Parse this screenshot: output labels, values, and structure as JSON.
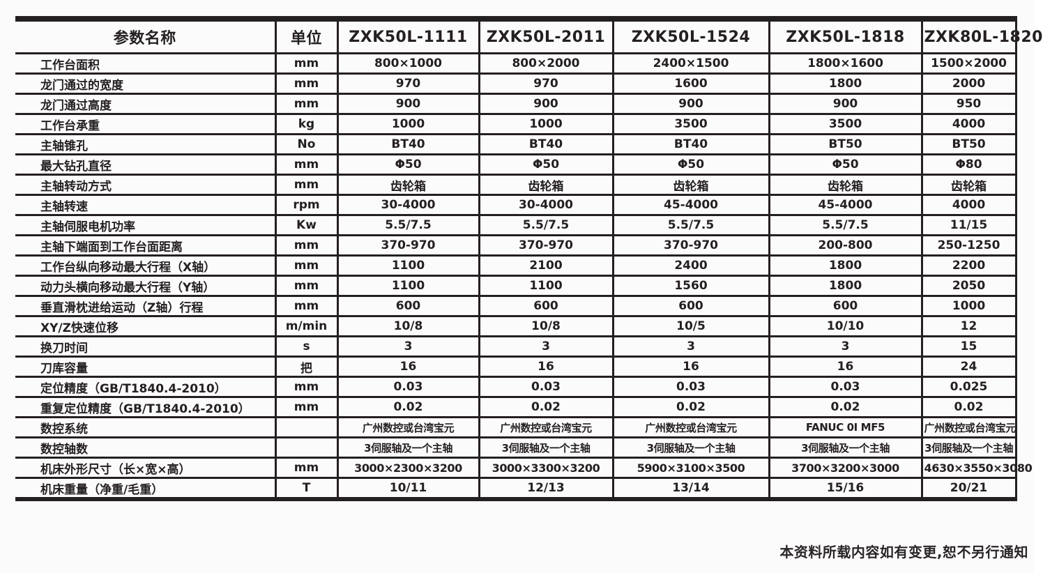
{
  "table": {
    "columns": [
      "参数名称",
      "单位",
      "ZXK50L-1111",
      "ZXK50L-2011",
      "ZXK50L-1524",
      "ZXK50L-1818",
      "ZXK80L-1820"
    ],
    "rows": [
      {
        "name": "工作台面积",
        "unit": "mm",
        "values": [
          "800×1000",
          "800×2000",
          "2400×1500",
          "1800×1600",
          "1500×2000"
        ]
      },
      {
        "name": "龙门通过的宽度",
        "unit": "mm",
        "values": [
          "970",
          "970",
          "1600",
          "1800",
          "2000"
        ]
      },
      {
        "name": "龙门通过高度",
        "unit": "mm",
        "values": [
          "900",
          "900",
          "900",
          "900",
          "950"
        ]
      },
      {
        "name": "工作台承重",
        "unit": "kg",
        "values": [
          "1000",
          "1000",
          "3500",
          "3500",
          "4000"
        ]
      },
      {
        "name": "主轴锥孔",
        "unit": "No",
        "values": [
          "BT40",
          "BT40",
          "BT40",
          "BT50",
          "BT50"
        ]
      },
      {
        "name": "最大钻孔直径",
        "unit": "mm",
        "values": [
          "Φ50",
          "Φ50",
          "Φ50",
          "Φ50",
          "Φ80"
        ]
      },
      {
        "name": "主轴转动方式",
        "unit": "mm",
        "values": [
          "齿轮箱",
          "齿轮箱",
          "齿轮箱",
          "齿轮箱",
          "齿轮箱"
        ]
      },
      {
        "name": "主轴转速",
        "unit": "rpm",
        "values": [
          "30-4000",
          "30-4000",
          "45-4000",
          "45-4000",
          "4000"
        ]
      },
      {
        "name": "主轴伺服电机功率",
        "unit": "Kw",
        "values": [
          "5.5/7.5",
          "5.5/7.5",
          "5.5/7.5",
          "5.5/7.5",
          "11/15"
        ]
      },
      {
        "name": "主轴下端面到工作台面距离",
        "unit": "mm",
        "values": [
          "370-970",
          "370-970",
          "370-970",
          "200-800",
          "250-1250"
        ]
      },
      {
        "name": "工作台纵向移动最大行程（X轴）",
        "unit": "mm",
        "values": [
          "1100",
          "2100",
          "2400",
          "1800",
          "2200"
        ]
      },
      {
        "name": "动力头横向移动最大行程（Y轴）",
        "unit": "mm",
        "values": [
          "1100",
          "1100",
          "1560",
          "1800",
          "2050"
        ]
      },
      {
        "name": "垂直滑枕进给运动（Z轴）行程",
        "unit": "mm",
        "values": [
          "600",
          "600",
          "600",
          "600",
          "1000"
        ]
      },
      {
        "name": "XY/Z快速位移",
        "unit": "m/min",
        "values": [
          "10/8",
          "10/8",
          "10/5",
          "10/10",
          "12"
        ]
      },
      {
        "name": "换刀时间",
        "unit": "s",
        "values": [
          "3",
          "3",
          "3",
          "3",
          "15"
        ]
      },
      {
        "name": "刀库容量",
        "unit": "把",
        "values": [
          "16",
          "16",
          "16",
          "16",
          "24"
        ]
      },
      {
        "name": "定位精度（GB/T1840.4-2010）",
        "unit": "mm",
        "values": [
          "0.03",
          "0.03",
          "0.03",
          "0.03",
          "0.025"
        ]
      },
      {
        "name": "重复定位精度（GB/T1840.4-2010）",
        "unit": "mm",
        "values": [
          "0.02",
          "0.02",
          "0.02",
          "0.02",
          "0.02"
        ]
      },
      {
        "name": "数控系统",
        "unit": "",
        "small": true,
        "values": [
          "广州数控或台湾宝元",
          "广州数控或台湾宝元",
          "广州数控或台湾宝元",
          "FANUC 0I MF5",
          "广州数控或台湾宝元"
        ]
      },
      {
        "name": "数控轴数",
        "unit": "",
        "small": true,
        "values": [
          "3伺服轴及一个主轴",
          "3伺服轴及一个主轴",
          "3伺服轴及一个主轴",
          "3伺服轴及一个主轴",
          "3伺服轴及一个主轴"
        ]
      },
      {
        "name": "机床外形尺寸（长×宽×高）",
        "unit": "mm",
        "dims": true,
        "values": [
          "3000×2300×3200",
          "3000×3300×3200",
          "5900×3100×3500",
          "3700×3200×3000",
          "4630×3550×3080"
        ]
      },
      {
        "name": "机床重量（净重/毛重）",
        "unit": "T",
        "values": [
          "10/11",
          "12/13",
          "13/14",
          "15/16",
          "20/21"
        ]
      }
    ]
  },
  "footer": {
    "note": "本资料所载内容如有变更,恕不另行通知"
  }
}
